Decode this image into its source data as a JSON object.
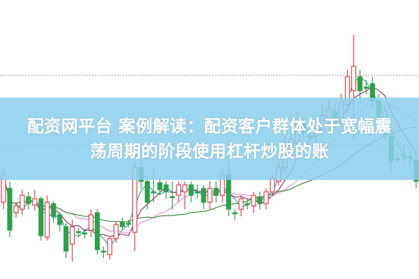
{
  "banner": {
    "line1": "配资网平台 案例解读：配资客户群体处于宽幅震",
    "line2": "荡周期的阶段使用杠杆炒股的账"
  },
  "chart_data": {
    "type": "candlestick",
    "title": "",
    "xlabel": "",
    "ylabel": "",
    "grid": "dotted horizontal lines",
    "up_color": "#e0404a",
    "down_color": "#2aa14a",
    "moving_average_colors": [
      "#3f9fa8",
      "#8a3a6a",
      "#e58be5",
      "#3a8a3a"
    ],
    "candles": [
      [
        110,
        150,
        160,
        100
      ],
      [
        130,
        70,
        140,
        60
      ],
      [
        95,
        105,
        110,
        88
      ],
      [
        100,
        120,
        128,
        92
      ],
      [
        118,
        108,
        125,
        100
      ],
      [
        106,
        115,
        128,
        98
      ],
      [
        115,
        62,
        118,
        55
      ],
      [
        60,
        110,
        120,
        55
      ],
      [
        108,
        90,
        112,
        80
      ],
      [
        92,
        78,
        96,
        68
      ],
      [
        75,
        40,
        80,
        30
      ],
      [
        50,
        75,
        85,
        25
      ],
      [
        68,
        68,
        74,
        60
      ],
      [
        66,
        66,
        72,
        58
      ],
      [
        70,
        92,
        100,
        60
      ],
      [
        95,
        42,
        100,
        35
      ],
      [
        40,
        40,
        46,
        30
      ],
      [
        35,
        58,
        60,
        28
      ],
      [
        58,
        78,
        82,
        52
      ],
      [
        82,
        75,
        88,
        70
      ],
      [
        80,
        80,
        85,
        74
      ],
      [
        67,
        160,
        170,
        40
      ],
      [
        160,
        140,
        170,
        130
      ],
      [
        140,
        110,
        150,
        100
      ],
      [
        125,
        125,
        160,
        110
      ],
      [
        138,
        128,
        145,
        120
      ],
      [
        135,
        125,
        140,
        115
      ],
      [
        118,
        118,
        140,
        100
      ],
      [
        120,
        135,
        140,
        110
      ],
      [
        125,
        135,
        140,
        100
      ],
      [
        135,
        120,
        140,
        110
      ],
      [
        125,
        125,
        135,
        115
      ],
      [
        130,
        110,
        135,
        100
      ],
      [
        110,
        130,
        140,
        100
      ],
      [
        130,
        120,
        140,
        110
      ],
      [
        120,
        150,
        160,
        110
      ],
      [
        150,
        100,
        200,
        90
      ],
      [
        95,
        95,
        100,
        85
      ],
      [
        100,
        115,
        120,
        90
      ],
      [
        108,
        108,
        115,
        100
      ],
      [
        105,
        120,
        125,
        95
      ],
      [
        118,
        108,
        125,
        100
      ],
      [
        108,
        125,
        130,
        100
      ],
      [
        125,
        145,
        150,
        120
      ],
      [
        140,
        160,
        175,
        135
      ],
      [
        160,
        190,
        205,
        150
      ],
      [
        185,
        200,
        210,
        180
      ],
      [
        195,
        230,
        240,
        185
      ],
      [
        225,
        210,
        230,
        200
      ],
      [
        205,
        205,
        212,
        198
      ],
      [
        205,
        220,
        230,
        195
      ],
      [
        215,
        235,
        250,
        205
      ],
      [
        230,
        245,
        255,
        220
      ],
      [
        240,
        225,
        250,
        215
      ],
      [
        225,
        255,
        265,
        220
      ],
      [
        250,
        290,
        300,
        240
      ],
      [
        270,
        305,
        350,
        200
      ],
      [
        290,
        270,
        300,
        250
      ],
      [
        275,
        275,
        285,
        265
      ],
      [
        280,
        255,
        290,
        245
      ],
      [
        255,
        230,
        265,
        220
      ],
      [
        220,
        240,
        250,
        200
      ],
      [
        205,
        170,
        210,
        150
      ],
      [
        172,
        172,
        180,
        165
      ],
      [
        178,
        178,
        190,
        168
      ],
      [
        175,
        175,
        185,
        165
      ],
      [
        170,
        140,
        180,
        130
      ]
    ]
  }
}
